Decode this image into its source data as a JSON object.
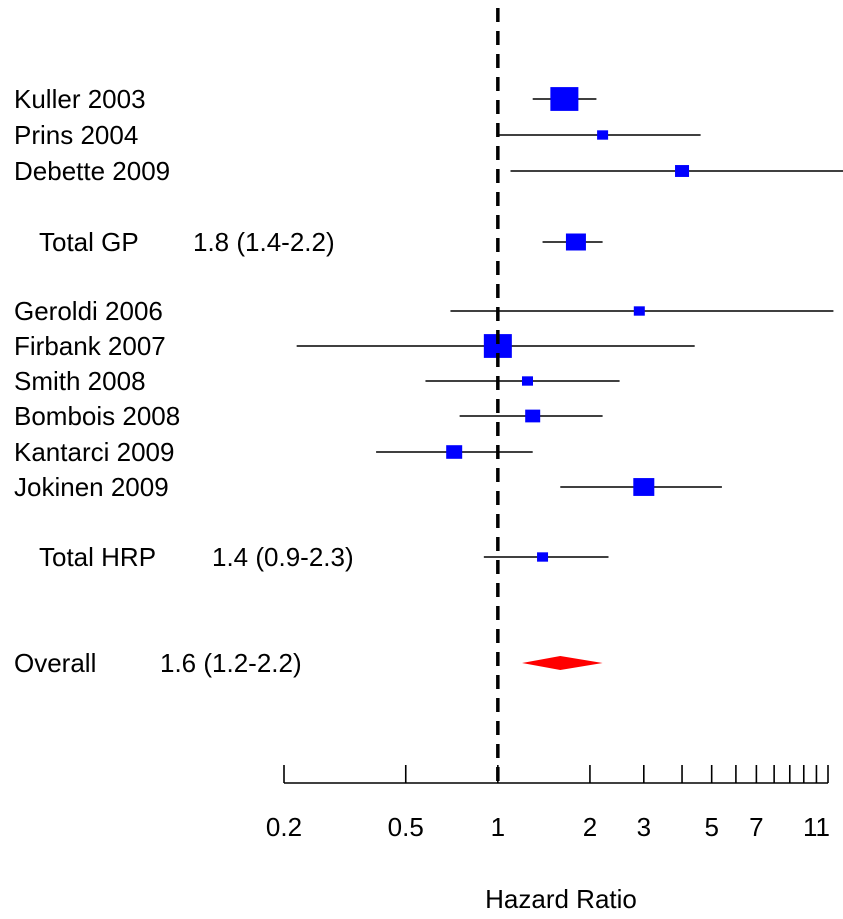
{
  "chart_data": {
    "type": "forest",
    "xlabel": "Hazard Ratio",
    "x_scale": "log",
    "xlim": [
      0.2,
      12
    ],
    "x_ticks_labeled": [
      0.2,
      0.5,
      1,
      2,
      3,
      5,
      7,
      11
    ],
    "x_tick_labels": [
      "0.2",
      "0.5",
      "1",
      "2",
      "3",
      "5",
      "7",
      "11"
    ],
    "x_ticks_minor": [
      4,
      6,
      8,
      9,
      10,
      12
    ],
    "reference_line": 1,
    "studies": [
      {
        "label": "Kuller 2003",
        "hr": 1.65,
        "lo": 1.3,
        "hi": 2.1
      },
      {
        "label": "Prins 2004",
        "hr": 2.2,
        "lo": 1.0,
        "hi": 4.6
      },
      {
        "label": "Debette 2009",
        "hr": 4.0,
        "lo": 1.1,
        "hi": 14
      },
      {
        "label": "Total GP",
        "summary_text": "1.8 (1.4-2.2)",
        "hr": 1.8,
        "lo": 1.4,
        "hi": 2.2
      },
      {
        "label": "Geroldi 2006",
        "hr": 2.9,
        "lo": 0.7,
        "hi": 12.5
      },
      {
        "label": "Firbank 2007",
        "hr": 1.0,
        "lo": 0.22,
        "hi": 4.4
      },
      {
        "label": "Smith 2008",
        "hr": 1.25,
        "lo": 0.58,
        "hi": 2.5
      },
      {
        "label": "Bombois 2008",
        "hr": 1.3,
        "lo": 0.75,
        "hi": 2.2
      },
      {
        "label": "Kantarci 2009",
        "hr": 0.72,
        "lo": 0.4,
        "hi": 1.3
      },
      {
        "label": "Jokinen 2009",
        "hr": 3.0,
        "lo": 1.6,
        "hi": 5.4
      },
      {
        "label": "Total HRP",
        "summary_text": "1.4 (0.9-2.3)",
        "hr": 1.4,
        "lo": 0.9,
        "hi": 2.3
      }
    ],
    "overall": {
      "label": "Overall",
      "summary_text": "1.6 (1.2-2.2)",
      "hr": 1.6,
      "lo": 1.2,
      "hi": 2.2
    },
    "colors": {
      "marker": "#0000ff",
      "diamond": "#ff0000",
      "line": "#000000"
    }
  }
}
